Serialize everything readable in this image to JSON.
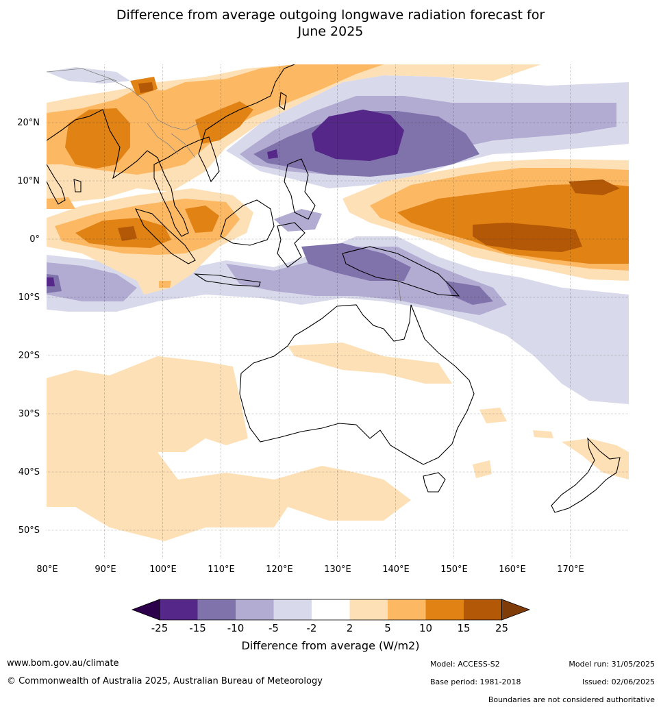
{
  "title_line1": "Difference from average outgoing longwave radiation forecast for",
  "title_line2": "June 2025",
  "lat_labels": [
    "20°N",
    "10°N",
    "0°",
    "10°S",
    "20°S",
    "30°S",
    "40°S",
    "50°S"
  ],
  "lon_labels": [
    "80°E",
    "90°E",
    "100°E",
    "110°E",
    "120°E",
    "130°E",
    "140°E",
    "150°E",
    "160°E",
    "170°E"
  ],
  "colorbar": {
    "title": "Difference from average (W/m2)",
    "ticks": [
      "-25",
      "-15",
      "-10",
      "-5",
      "-2",
      "2",
      "5",
      "10",
      "15",
      "25"
    ],
    "colors": {
      "below_-25": "#2d004b",
      "-25_-15": "#542788",
      "-15_-10": "#8073ac",
      "-10_-5": "#b2abd2",
      "-5_-2": "#d8daeb",
      "-2_2": "#ffffff",
      "2_5": "#fee0b6",
      "5_10": "#fdb863",
      "10_15": "#e08214",
      "15_25": "#b35806",
      "above_25": "#7f3b08"
    }
  },
  "footer": {
    "website": "www.bom.gov.au/climate",
    "copyright": "© Commonwealth of Australia 2025, Australian Bureau of Meteorology",
    "model": "Model: ACCESS-S2",
    "base_period": "Base period: 1981-2018",
    "model_run": "Model run: 31/05/2025",
    "issued": "Issued: 02/06/2025",
    "disclaimer": "Boundaries are not considered authoritative"
  }
}
